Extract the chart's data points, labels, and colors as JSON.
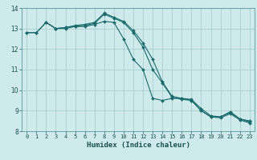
{
  "xlabel": "Humidex (Indice chaleur)",
  "ylabel": "",
  "bg_color": "#ceeaea",
  "grid_color": "#aacece",
  "line_color": "#1a6b6b",
  "xlim": [
    -0.5,
    23.5
  ],
  "ylim": [
    8,
    14
  ],
  "xticks": [
    0,
    1,
    2,
    3,
    4,
    5,
    6,
    7,
    8,
    9,
    10,
    11,
    12,
    13,
    14,
    15,
    16,
    17,
    18,
    19,
    20,
    21,
    22,
    23
  ],
  "yticks": [
    8,
    9,
    10,
    11,
    12,
    13,
    14
  ],
  "series": [
    {
      "x": [
        0,
        1,
        2,
        3,
        4,
        5,
        6,
        7,
        8,
        9,
        10,
        11,
        12,
        13,
        14,
        15,
        16,
        17,
        18,
        19,
        20,
        21,
        22,
        23
      ],
      "y": [
        12.8,
        12.8,
        13.3,
        13.0,
        13.0,
        13.1,
        13.1,
        13.2,
        13.35,
        13.3,
        12.5,
        11.5,
        11.0,
        9.6,
        9.5,
        9.6,
        9.6,
        9.5,
        9.0,
        8.7,
        8.7,
        8.9,
        8.6,
        8.5
      ]
    },
    {
      "x": [
        0,
        1,
        2,
        3,
        4,
        5,
        6,
        7,
        8,
        9,
        10,
        11,
        12,
        13,
        14,
        15,
        16,
        17,
        18,
        19,
        20,
        21,
        22,
        23
      ],
      "y": [
        12.8,
        12.8,
        13.3,
        13.0,
        13.05,
        13.15,
        13.2,
        13.3,
        13.75,
        13.55,
        13.35,
        12.9,
        12.3,
        11.5,
        10.4,
        9.7,
        9.6,
        9.55,
        9.1,
        8.75,
        8.7,
        8.95,
        8.6,
        8.45
      ]
    },
    {
      "x": [
        2,
        3,
        4,
        5,
        6,
        7,
        8,
        9,
        10,
        11,
        12,
        13,
        14,
        15,
        16,
        17,
        18,
        19,
        20,
        21,
        22,
        23
      ],
      "y": [
        13.3,
        13.0,
        13.05,
        13.1,
        13.15,
        13.25,
        13.7,
        13.5,
        13.3,
        12.8,
        12.1,
        11.0,
        10.35,
        9.65,
        9.55,
        9.5,
        9.0,
        8.7,
        8.65,
        8.85,
        8.55,
        8.4
      ]
    }
  ]
}
